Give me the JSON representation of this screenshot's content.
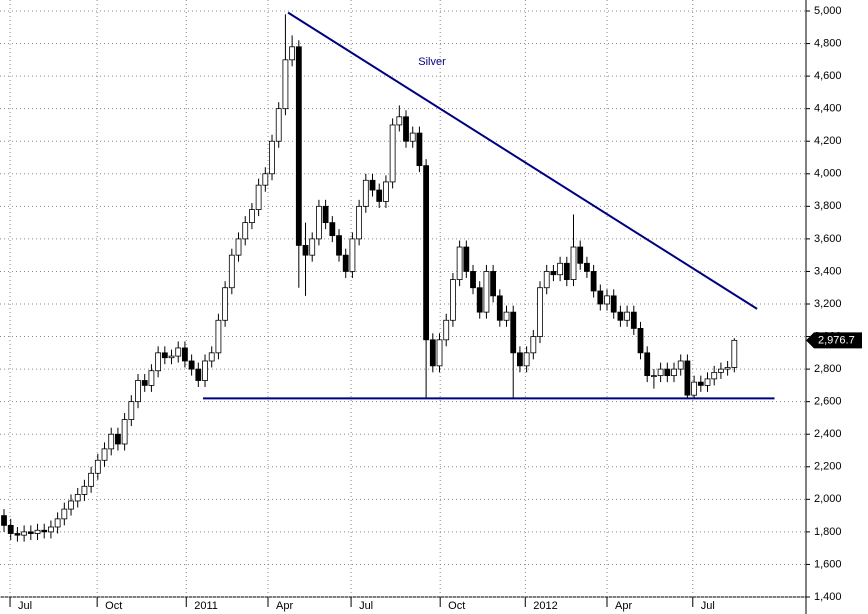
{
  "chart_data": {
    "type": "candlestick",
    "title": "Silver",
    "open": [
      1900,
      1840,
      1790,
      1780,
      1800,
      1790,
      1810,
      1800,
      1830,
      1880,
      1940,
      1990,
      2030,
      2080,
      2160,
      2240,
      2310,
      2400,
      2340,
      2490,
      2600,
      2730,
      2700,
      2790,
      2900,
      2870,
      2880,
      2930,
      2850,
      2800,
      2730,
      2850,
      2900,
      3100,
      3300,
      3500,
      3600,
      3700,
      3780,
      3930,
      4000,
      4200,
      4400,
      4700,
      4780,
      3560,
      3500,
      3600,
      3800,
      3700,
      3620,
      3500,
      3400,
      3600,
      3800,
      3960,
      3900,
      3830,
      3950,
      4300,
      4350,
      4200,
      4250,
      4050,
      2980,
      2820,
      2980,
      3100,
      3350,
      3550,
      3400,
      3300,
      3150,
      3400,
      3250,
      3100,
      3150,
      2900,
      2820,
      2900,
      3000,
      3300,
      3400,
      3380,
      3450,
      3350,
      3550,
      3450,
      3400,
      3280,
      3200,
      3250,
      3150,
      3100,
      3150,
      3050,
      2900,
      2760,
      2760,
      2800,
      2760,
      2800,
      2850,
      2640,
      2720,
      2700,
      2740,
      2780,
      2800,
      2810
    ],
    "high": [
      1940,
      1880,
      1830,
      1840,
      1840,
      1850,
      1850,
      1870,
      1920,
      1980,
      2030,
      2070,
      2120,
      2200,
      2280,
      2350,
      2440,
      2440,
      2530,
      2640,
      2770,
      2770,
      2830,
      2940,
      2940,
      2920,
      2970,
      2970,
      2890,
      2840,
      2890,
      2940,
      3140,
      3340,
      3540,
      3640,
      3740,
      3820,
      3970,
      4040,
      4240,
      4440,
      4980,
      4850,
      4820,
      3700,
      3640,
      3840,
      3840,
      3740,
      3660,
      3540,
      3640,
      3840,
      4000,
      4000,
      3940,
      3990,
      4340,
      4420,
      4390,
      4290,
      4290,
      4090,
      3020,
      3020,
      3140,
      3390,
      3590,
      3590,
      3440,
      3340,
      3440,
      3440,
      3290,
      3190,
      3190,
      2940,
      2940,
      3040,
      3340,
      3440,
      3440,
      3490,
      3490,
      3750,
      3590,
      3490,
      3440,
      3320,
      3290,
      3290,
      3190,
      3190,
      3190,
      3090,
      2940,
      2800,
      2840,
      2840,
      2840,
      2890,
      2890,
      2760,
      2760,
      2780,
      2820,
      2840,
      2850,
      2990
    ],
    "low": [
      1800,
      1750,
      1740,
      1740,
      1750,
      1750,
      1760,
      1760,
      1790,
      1840,
      1900,
      1950,
      1990,
      2040,
      2120,
      2200,
      2270,
      2300,
      2300,
      2450,
      2560,
      2660,
      2660,
      2750,
      2830,
      2830,
      2840,
      2810,
      2760,
      2690,
      2690,
      2810,
      2860,
      3060,
      3260,
      3460,
      3560,
      3660,
      3740,
      3890,
      3960,
      4160,
      4360,
      4660,
      3300,
      3250,
      3460,
      3560,
      3660,
      3580,
      3460,
      3360,
      3360,
      3560,
      3760,
      3860,
      3790,
      3790,
      3910,
      4260,
      4160,
      4160,
      4010,
      2620,
      2780,
      2780,
      2940,
      3060,
      3310,
      3360,
      3260,
      3110,
      3110,
      3210,
      3060,
      3060,
      2620,
      2780,
      2780,
      2860,
      2960,
      3260,
      3340,
      3340,
      3310,
      3310,
      3410,
      3360,
      3240,
      3160,
      3160,
      3110,
      3060,
      3060,
      3010,
      2860,
      2720,
      2680,
      2720,
      2720,
      2720,
      2760,
      2620,
      2620,
      2660,
      2660,
      2700,
      2740,
      2760,
      2780
    ],
    "close": [
      1840,
      1790,
      1780,
      1800,
      1790,
      1810,
      1800,
      1830,
      1880,
      1940,
      1990,
      2030,
      2080,
      2160,
      2240,
      2310,
      2400,
      2340,
      2490,
      2600,
      2730,
      2700,
      2790,
      2900,
      2870,
      2880,
      2930,
      2850,
      2800,
      2730,
      2850,
      2900,
      3100,
      3300,
      3500,
      3600,
      3700,
      3780,
      3930,
      4000,
      4200,
      4400,
      4700,
      4780,
      3560,
      3500,
      3600,
      3800,
      3700,
      3620,
      3500,
      3400,
      3600,
      3800,
      3960,
      3900,
      3830,
      3950,
      4300,
      4350,
      4200,
      4250,
      4050,
      2980,
      2820,
      2980,
      3100,
      3350,
      3550,
      3400,
      3300,
      3150,
      3400,
      3250,
      3100,
      3150,
      2900,
      2820,
      2900,
      3000,
      3300,
      3400,
      3380,
      3450,
      3350,
      3550,
      3450,
      3400,
      3280,
      3200,
      3250,
      3150,
      3100,
      3150,
      3050,
      2900,
      2760,
      2760,
      2800,
      2760,
      2800,
      2850,
      2640,
      2720,
      2700,
      2740,
      2780,
      2800,
      2810,
      2976.7
    ],
    "up_color": "#ffffff",
    "down_color": "#000000",
    "line_color": "#000080",
    "trendlines": [
      [
        [
          42.4,
          4990
        ],
        [
          112.4,
          3170
        ]
      ],
      [
        [
          29.7,
          2620
        ],
        [
          115,
          2620
        ]
      ]
    ],
    "last_price": {
      "value": 2976.7,
      "label": "2,976.7"
    },
    "xlim": [
      -0.6,
      119.7
    ],
    "xticks": [
      {
        "value": 0.9,
        "label": "Jul"
      },
      {
        "value": 13.9,
        "label": "Oct"
      },
      {
        "value": 27.2,
        "label": "2011"
      },
      {
        "value": 39.4,
        "label": "Apr"
      },
      {
        "value": 51.8,
        "label": "Jul"
      },
      {
        "value": 65.1,
        "label": "Oct"
      },
      {
        "value": 77.8,
        "label": "2012"
      },
      {
        "value": 90,
        "label": "Apr"
      },
      {
        "value": 102.8,
        "label": "Jul"
      }
    ],
    "ylim": [
      1400,
      5000
    ],
    "yticks": [
      {
        "value": 1400,
        "label": "1,400"
      },
      {
        "value": 1600,
        "label": "1,600"
      },
      {
        "value": 1800,
        "label": "1,800"
      },
      {
        "value": 2000,
        "label": "2,000"
      },
      {
        "value": 2200,
        "label": "2,200"
      },
      {
        "value": 2400,
        "label": "2,400"
      },
      {
        "value": 2600,
        "label": "2,600"
      },
      {
        "value": 2800,
        "label": "2,800"
      },
      {
        "value": 3000,
        "label": "3,000"
      },
      {
        "value": 3200,
        "label": "3,200"
      },
      {
        "value": 3400,
        "label": "3,400"
      },
      {
        "value": 3600,
        "label": "3,600"
      },
      {
        "value": 3800,
        "label": "3,800"
      },
      {
        "value": 4000,
        "label": "4,000"
      },
      {
        "value": 4200,
        "label": "4,200"
      },
      {
        "value": 4400,
        "label": "4,400"
      },
      {
        "value": 4600,
        "label": "4,600"
      },
      {
        "value": 4800,
        "label": "4,800"
      },
      {
        "value": 5000,
        "label": "5,000"
      }
    ],
    "grid": true
  }
}
